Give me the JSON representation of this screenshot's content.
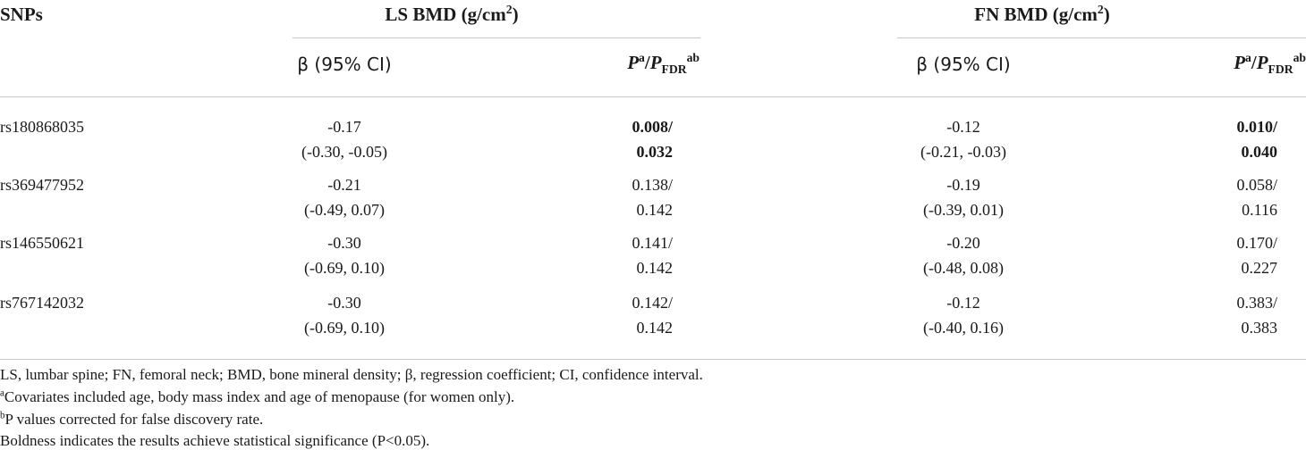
{
  "table": {
    "stub_header": "SNPs",
    "groups": [
      {
        "title": "LS BMD (g/cm",
        "title_sup": "2",
        "title_end": ")",
        "beta_header": "β (95% CI)",
        "p_header": {
          "p1": "P",
          "p1_sup": "a",
          "sep": "/",
          "p2": "P",
          "p2_sub": "FDR",
          "p2_sup": "ab"
        }
      },
      {
        "title": "FN BMD (g/cm",
        "title_sup": "2",
        "title_end": ")",
        "beta_header": "β (95% CI)",
        "p_header": {
          "p1": "P",
          "p1_sup": "a",
          "sep": "/",
          "p2": "P",
          "p2_sub": "FDR",
          "p2_sup": "ab"
        }
      }
    ],
    "rows": [
      {
        "snp": "rs180868035",
        "bold_p": true,
        "cells": [
          {
            "beta": "-0.17",
            "ci": "(-0.30, -0.05)",
            "p": "0.008/",
            "p_fdr": "0.032"
          },
          {
            "beta": "-0.12",
            "ci": "(-0.21, -0.03)",
            "p": "0.010/",
            "p_fdr": "0.040"
          }
        ]
      },
      {
        "snp": "rs369477952",
        "bold_p": false,
        "cells": [
          {
            "beta": "-0.21",
            "ci": "(-0.49, 0.07)",
            "p": "0.138/",
            "p_fdr": "0.142"
          },
          {
            "beta": "-0.19",
            "ci": "(-0.39, 0.01)",
            "p": "0.058/",
            "p_fdr": "0.116"
          }
        ]
      },
      {
        "snp": "rs146550621",
        "bold_p": false,
        "cells": [
          {
            "beta": "-0.30",
            "ci": "(-0.69, 0.10)",
            "p": "0.141/",
            "p_fdr": "0.142"
          },
          {
            "beta": "-0.20",
            "ci": "(-0.48, 0.08)",
            "p": "0.170/",
            "p_fdr": "0.227"
          }
        ]
      },
      {
        "snp": "rs767142032",
        "bold_p": false,
        "cells": [
          {
            "beta": "-0.30",
            "ci": "(-0.69, 0.10)",
            "p": "0.142/",
            "p_fdr": "0.142"
          },
          {
            "beta": "-0.12",
            "ci": "(-0.40, 0.16)",
            "p": "0.383/",
            "p_fdr": "0.383"
          }
        ]
      }
    ]
  },
  "footnotes": [
    {
      "text": "LS, lumbar spine; FN, femoral neck; BMD, bone mineral density; β, regression coefficient; CI, confidence interval."
    },
    {
      "mark": "a",
      "text": "Covariates included age, body mass index and age of menopause (for women only)."
    },
    {
      "mark": "b",
      "text": "P values corrected for false discovery rate."
    },
    {
      "text": "Boldness indicates the results achieve statistical significance (P<0.05)."
    }
  ]
}
